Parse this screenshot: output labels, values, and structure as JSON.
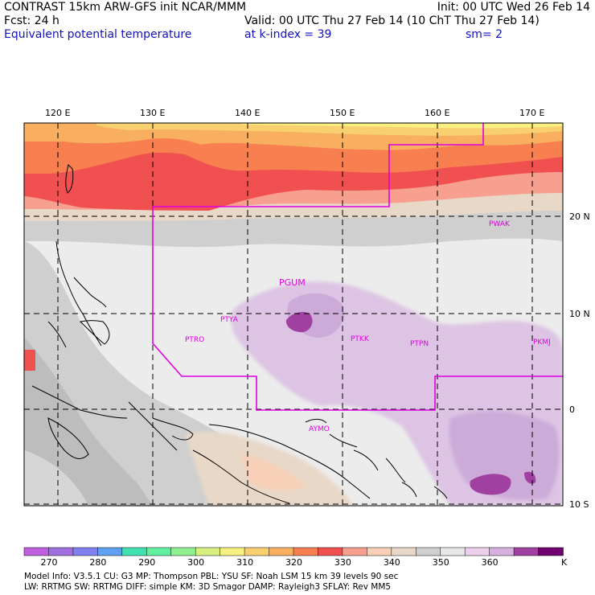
{
  "header": {
    "left_line1": "CONTRAST 15km ARW-GFS init    NCAR/MMM",
    "left_line2": "Fcst:    24 h",
    "left_line3": "Equivalent potential temperature",
    "right_line1": "Init: 00 UTC Wed 26 Feb 14",
    "right_line2": "Valid: 00 UTC Thu 27 Feb 14 (10 ChT Thu 27 Feb 14)",
    "right_line3a": "at k-index =  39",
    "right_line3b": "sm= 2"
  },
  "map": {
    "lon_ticks": [
      "120 E",
      "130 E",
      "140 E",
      "150 E",
      "160 E",
      "170 E"
    ],
    "lat_ticks": [
      "20 N",
      "10 N",
      "0",
      "10 S"
    ],
    "stations": [
      "PGUM",
      "PTYA",
      "PTRO",
      "PTKK",
      "PTPN",
      "PKMJ",
      "PWAK",
      "AYMO"
    ]
  },
  "colorbar": {
    "colors": [
      "#c060e0",
      "#a070e0",
      "#8080f0",
      "#60a0f0",
      "#40e0b0",
      "#60f0a0",
      "#90f090",
      "#d8f080",
      "#f8f080",
      "#f8d070",
      "#f8b060",
      "#f88050",
      "#f05050",
      "#f8a090",
      "#f8d0b8",
      "#e8d8c8",
      "#d0d0d0",
      "#e8e8e8",
      "#ecd0ec",
      "#d8b0e0",
      "#a040a0",
      "#700070"
    ],
    "labels": [
      "270",
      "280",
      "290",
      "300",
      "310",
      "320",
      "330",
      "340",
      "350",
      "360"
    ],
    "unit": "K"
  },
  "footer": {
    "line1": "Model Info: V3.5.1    CU: G3       MP: Thompson     PBL: YSU        SF: Noah LSM     15 km   39 levels   90 sec",
    "line2": "     LW: RRTMG    SW: RRTMG   DIFF: simple KM: 3D Smagor DAMP: Rayleigh3  SFLAY: Rev MM5"
  }
}
